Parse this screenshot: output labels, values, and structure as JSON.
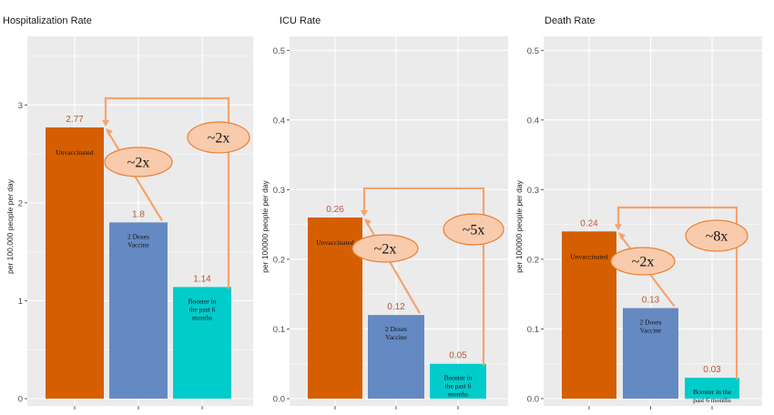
{
  "colors": {
    "unvaccinated": "#d55e00",
    "two_doses": "#6589c2",
    "booster": "#00cccc",
    "panel_bg": "#ebebeb",
    "grid": "#ffffff",
    "arrow": "#f4a46c",
    "ellipse_fill": "#f8cbad",
    "ellipse_stroke": "#ed7d31",
    "value_label": "#b5583a"
  },
  "chart_data": [
    {
      "type": "bar",
      "title": "Hospitalization Rate",
      "ylabel": "per 100,000 people per day",
      "ylim": [
        0,
        3.7
      ],
      "yticks": [
        0,
        1,
        2,
        3
      ],
      "ytick_labels": [
        "0",
        "1",
        "2",
        "3"
      ],
      "categories": [
        "Unvaccinated",
        "2 Doses Vaccine",
        "Booster in the past 6 months"
      ],
      "values": [
        2.77,
        1.8,
        1.14
      ],
      "value_labels": [
        "2.77",
        "1.8",
        "1.14"
      ],
      "bar_text": [
        [
          "Unvaccinated"
        ],
        [
          "2 Doses",
          "Vaccine"
        ],
        [
          "Booster in",
          "the past 6",
          "months"
        ]
      ],
      "annotations": [
        {
          "label": "~2x",
          "from": 1,
          "to": 0
        },
        {
          "label": "~2x",
          "from": 2,
          "to": 0
        }
      ]
    },
    {
      "type": "bar",
      "title": "ICU Rate",
      "ylabel": "per 100000 people per day",
      "ylim": [
        0,
        0.52
      ],
      "yticks": [
        0,
        0.1,
        0.2,
        0.3,
        0.4,
        0.5
      ],
      "ytick_labels": [
        "0.0",
        "0.1",
        "0.2",
        "0.3",
        "0.4",
        "0.5"
      ],
      "categories": [
        "Unvaccinated",
        "2 Doses Vaccine",
        "Booster in the past 6 months"
      ],
      "values": [
        0.26,
        0.12,
        0.05
      ],
      "value_labels": [
        "0.26",
        "0.12",
        "0.05"
      ],
      "bar_text": [
        [
          "Unvaccinated"
        ],
        [
          "2 Doses",
          "Vaccine"
        ],
        [
          "Booster in",
          "the past 6",
          "months"
        ]
      ],
      "annotations": [
        {
          "label": "~2x",
          "from": 1,
          "to": 0
        },
        {
          "label": "~5x",
          "from": 2,
          "to": 0
        }
      ]
    },
    {
      "type": "bar",
      "title": "Death Rate",
      "ylabel": "per 100000 people per day",
      "ylim": [
        0,
        0.52
      ],
      "yticks": [
        0,
        0.1,
        0.2,
        0.3,
        0.4,
        0.5
      ],
      "ytick_labels": [
        "0.0",
        "0.1",
        "0.2",
        "0.3",
        "0.4",
        "0.5"
      ],
      "categories": [
        "Unvaccinated",
        "2 Doses Vaccine",
        "Booster in the past 6 months"
      ],
      "values": [
        0.24,
        0.13,
        0.03
      ],
      "value_labels": [
        "0.24",
        "0.13",
        "0.03"
      ],
      "bar_text": [
        [
          "Unvaccinated"
        ],
        [
          "2 Doses",
          "Vaccine"
        ],
        [
          "Booster in the",
          "past 6 months"
        ]
      ],
      "annotations": [
        {
          "label": "~2x",
          "from": 1,
          "to": 0
        },
        {
          "label": "~8x",
          "from": 2,
          "to": 0
        }
      ]
    }
  ]
}
